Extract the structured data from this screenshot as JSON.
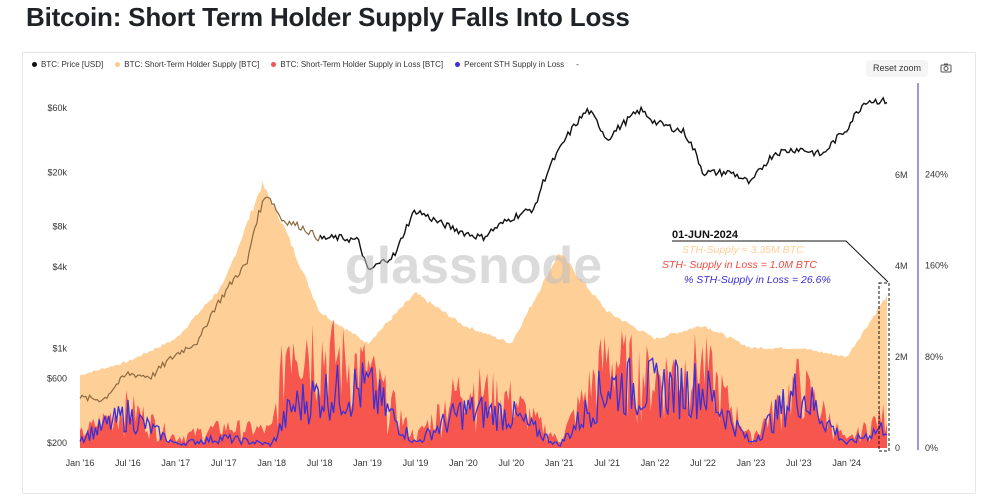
{
  "title": "Bitcoin: Short Term Holder Supply Falls Into Loss",
  "toolbar": {
    "reset_zoom": "Reset zoom",
    "camera_icon": "camera-icon"
  },
  "legend": [
    {
      "label": "BTC: Price [USD]",
      "color": "#111111"
    },
    {
      "label": "BTC: Short-Term Holder Supply [BTC]",
      "color": "#ffc98f"
    },
    {
      "label": "BTC: Short-Term Holder Supply in Loss [BTC]",
      "color": "#f25550"
    },
    {
      "label": "Percent STH Supply in Loss",
      "color": "#3b30d1"
    },
    {
      "label": "-",
      "color": ""
    }
  ],
  "watermark": "glassnode",
  "annotation": {
    "date": "01-JUN-2024",
    "line1": "STH-Supply = 3.35M BTC",
    "line2": "STH- Supply in Loss = 1.0M BTC",
    "line3": "% STH-Supply in Loss = 26.6%"
  },
  "colors": {
    "price": "#111111",
    "price_early": "#8a6a3c",
    "sth": "#ffcf98",
    "loss": "#f7564f",
    "pct": "#3b2fd6",
    "axis_right": "#4a4ad0"
  },
  "chart_data": {
    "type": "area",
    "x_ticks": [
      "Jan '16",
      "Jul '16",
      "Jan '17",
      "Jul '17",
      "Jan '18",
      "Jul '18",
      "Jan '19",
      "Jul '19",
      "Jan '20",
      "Jul '20",
      "Jan '21",
      "Jul '21",
      "Jan '22",
      "Jul '22",
      "Jan '23",
      "Jul '23",
      "Jan '24"
    ],
    "y_left_ticks": [
      "$60k",
      "$20k",
      "$8k",
      "$4k",
      "$1k",
      "$600",
      "$200"
    ],
    "y_left_scale": "log",
    "y_mid_ticks": [
      "6M",
      "4M",
      "2M",
      "0"
    ],
    "y_right_ticks": [
      "240%",
      "160%",
      "80%",
      "0%"
    ],
    "series": [
      {
        "name": "BTC: Price [USD]",
        "x": [
          2016.0,
          2016.25,
          2016.5,
          2016.75,
          2017.0,
          2017.25,
          2017.5,
          2017.75,
          2017.95,
          2018.1,
          2018.3,
          2018.5,
          2018.7,
          2018.9,
          2019.0,
          2019.3,
          2019.5,
          2019.75,
          2020.0,
          2020.2,
          2020.5,
          2020.75,
          2021.0,
          2021.3,
          2021.5,
          2021.85,
          2022.0,
          2022.3,
          2022.5,
          2022.8,
          2023.0,
          2023.25,
          2023.5,
          2023.75,
          2024.0,
          2024.2,
          2024.42
        ],
        "values": [
          430,
          420,
          650,
          620,
          900,
          1150,
          2500,
          4300,
          14000,
          9000,
          8000,
          6500,
          6600,
          6300,
          3700,
          5000,
          10500,
          8500,
          7200,
          6600,
          9200,
          11000,
          29000,
          58000,
          35000,
          58000,
          47000,
          40000,
          20000,
          20000,
          16500,
          28000,
          30000,
          27000,
          42000,
          68000,
          67500
        ]
      },
      {
        "name": "BTC: Short-Term Holder Supply [BTC]",
        "x": [
          2016.0,
          2016.5,
          2017.0,
          2017.5,
          2017.9,
          2018.1,
          2018.5,
          2019.0,
          2019.5,
          2020.0,
          2020.5,
          2021.0,
          2021.5,
          2022.0,
          2022.5,
          2023.0,
          2023.5,
          2024.0,
          2024.42
        ],
        "values": [
          1.6,
          1.9,
          2.4,
          3.6,
          5.8,
          5.0,
          3.0,
          2.3,
          3.4,
          2.7,
          2.3,
          4.3,
          3.0,
          2.4,
          2.7,
          2.2,
          2.2,
          2.0,
          3.35
        ]
      },
      {
        "name": "BTC: Short-Term Holder Supply in Loss [BTC]",
        "x": [
          2016.0,
          2016.5,
          2017.0,
          2017.5,
          2018.0,
          2018.2,
          2018.5,
          2019.0,
          2019.5,
          2020.0,
          2020.5,
          2021.0,
          2021.5,
          2022.0,
          2022.5,
          2023.0,
          2023.5,
          2024.0,
          2024.42
        ],
        "values": [
          0.4,
          1.2,
          0.3,
          0.6,
          0.5,
          3.5,
          2.8,
          2.2,
          0.3,
          1.8,
          1.4,
          0.2,
          2.6,
          2.0,
          2.4,
          0.3,
          1.9,
          0.2,
          1.0
        ]
      },
      {
        "name": "Percent STH Supply in Loss",
        "x": [
          2016.0,
          2016.5,
          2017.0,
          2017.5,
          2018.0,
          2018.2,
          2018.5,
          2019.0,
          2019.5,
          2020.0,
          2020.5,
          2021.0,
          2021.5,
          2022.0,
          2022.5,
          2023.0,
          2023.5,
          2024.0,
          2024.42
        ],
        "values": [
          12,
          40,
          5,
          12,
          4,
          48,
          65,
          72,
          6,
          45,
          40,
          3,
          75,
          72,
          72,
          6,
          70,
          5,
          26.6
        ]
      }
    ]
  }
}
